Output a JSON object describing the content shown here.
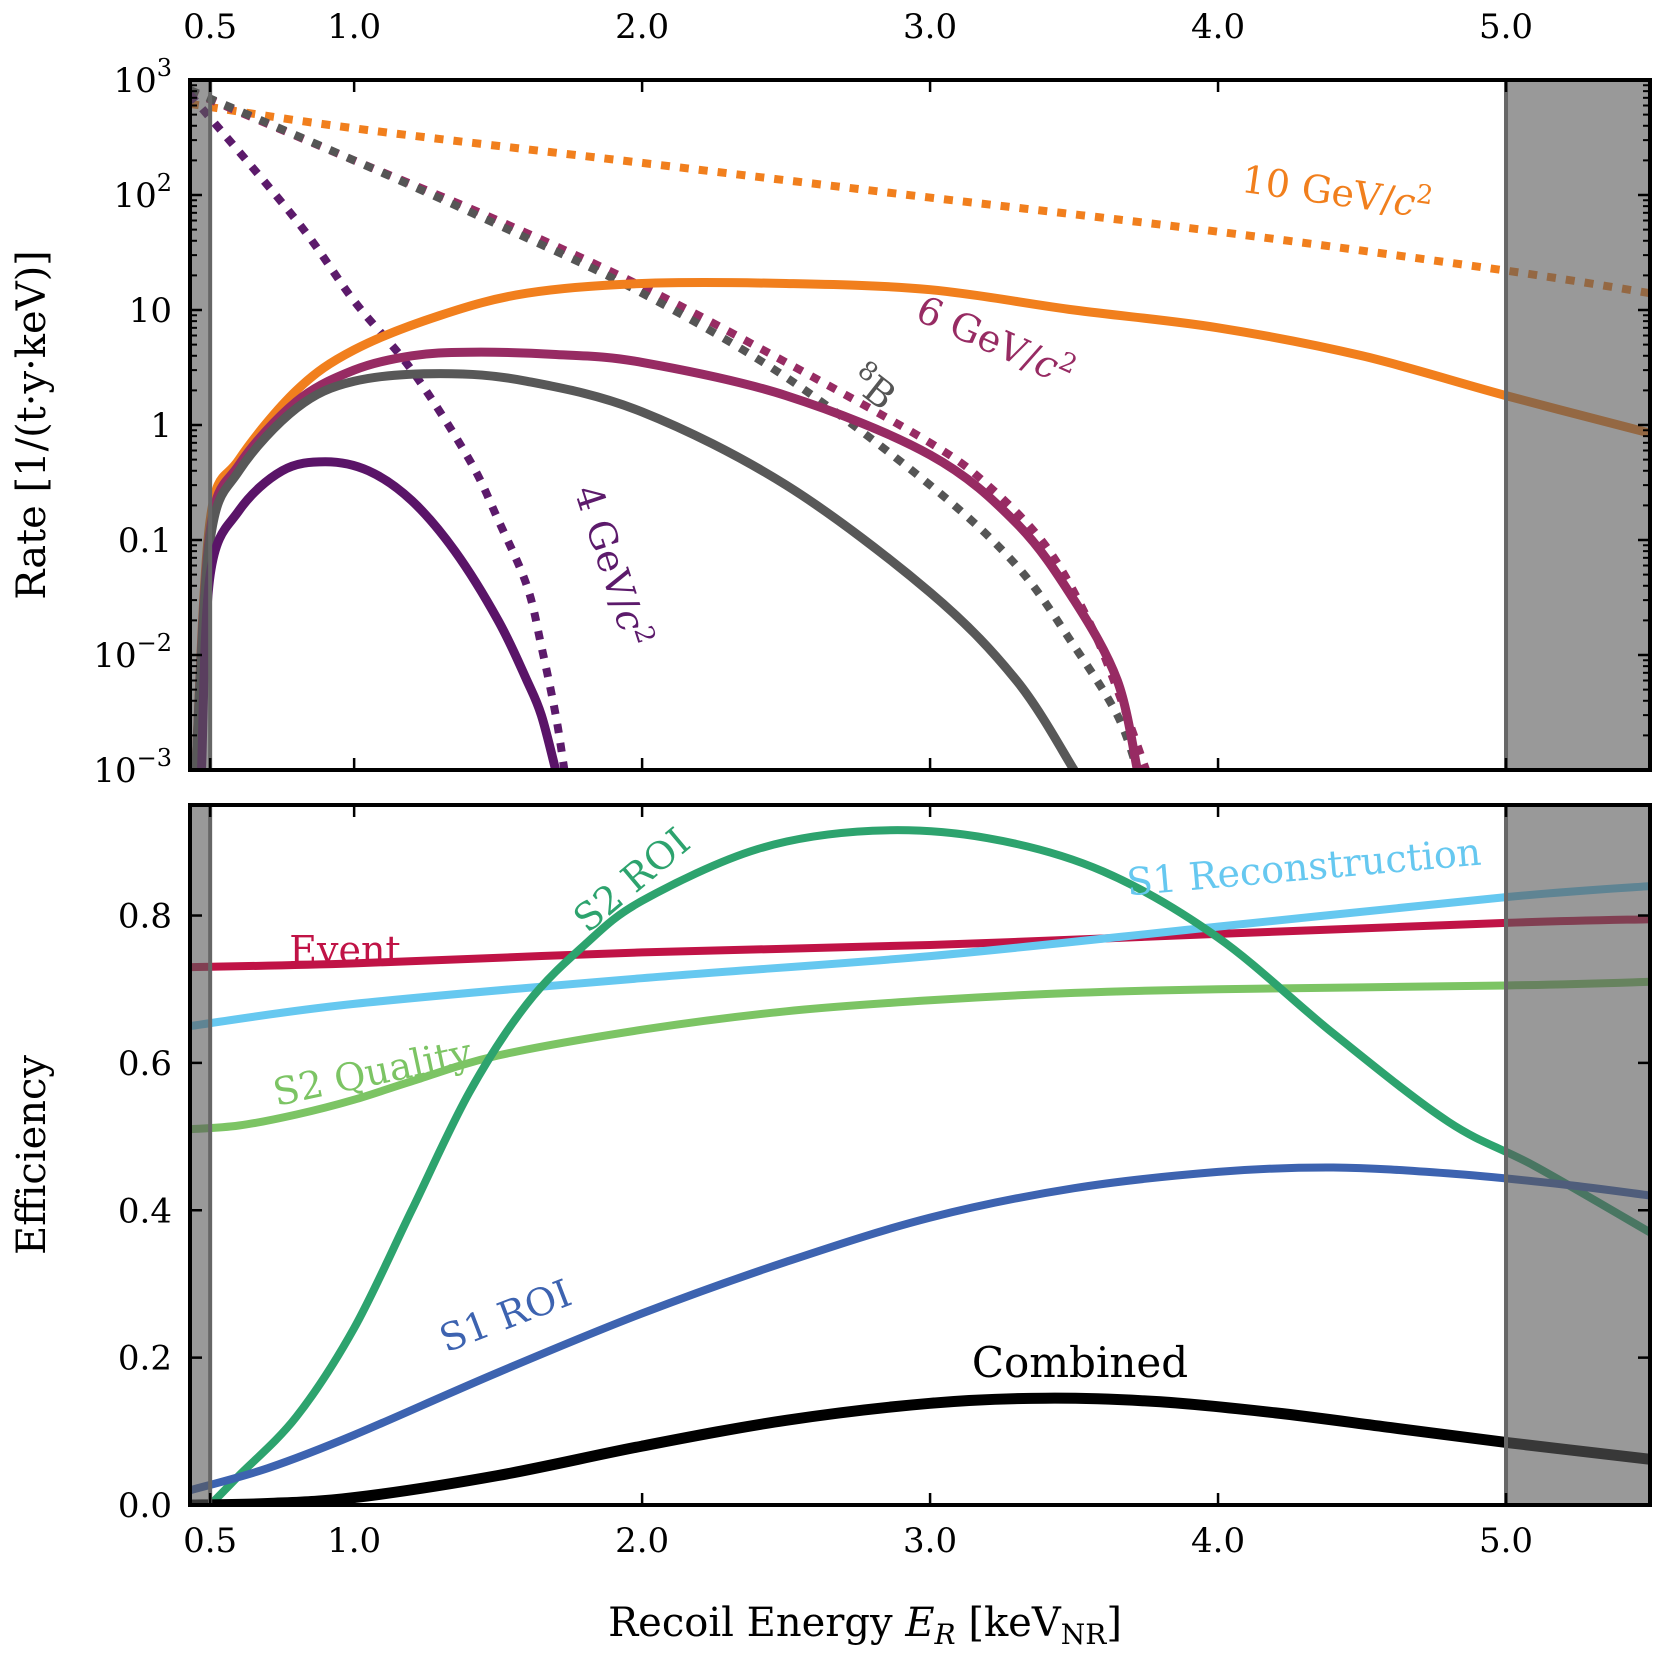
{
  "chart_data": [
    {
      "type": "line",
      "id": "rates",
      "yscale": "log",
      "xlim": [
        0.43,
        5.5
      ],
      "ylim": [
        0.001,
        1000
      ],
      "ylabel": "Rate [1/(t·y·keV)]",
      "x_top_ticks": [
        {
          "value": 0.5,
          "label": "0.5"
        },
        {
          "value": 1.0,
          "label": "1.0"
        },
        {
          "value": 2.0,
          "label": "2.0"
        },
        {
          "value": 3.0,
          "label": "3.0"
        },
        {
          "value": 4.0,
          "label": "4.0"
        },
        {
          "value": 5.0,
          "label": "5.0"
        }
      ],
      "y_ticks": [
        {
          "value": 1000,
          "base": "10",
          "exp": "3"
        },
        {
          "value": 100,
          "base": "10",
          "exp": "2"
        },
        {
          "value": 10,
          "base": "10",
          "exp": ""
        },
        {
          "value": 1,
          "base": "1",
          "exp": ""
        },
        {
          "value": 0.1,
          "base": "0.1",
          "exp": ""
        },
        {
          "value": 0.01,
          "base": "10",
          "exp": "−2"
        },
        {
          "value": 0.001,
          "base": "10",
          "exp": "−3"
        }
      ],
      "shaded_regions": [
        [
          0.43,
          0.5
        ],
        [
          5.0,
          5.5
        ]
      ],
      "series": [
        {
          "name": "10 GeV/c² (dotted)",
          "style": "dotted",
          "color": "#f17f1d",
          "x": [
            0.43,
            1.0,
            2.0,
            3.0,
            4.0,
            5.0,
            5.5
          ],
          "y": [
            620,
            380,
            190,
            95,
            48,
            22,
            14
          ]
        },
        {
          "name": "6 GeV/c² (dotted)",
          "style": "dotted",
          "color": "#972b63",
          "x": [
            0.43,
            1.0,
            1.5,
            2.0,
            2.5,
            3.0,
            3.2,
            3.4,
            3.55,
            3.65,
            3.75
          ],
          "y": [
            800,
            200,
            60,
            16,
            3.5,
            0.7,
            0.3,
            0.09,
            0.02,
            0.005,
            0.001
          ]
        },
        {
          "name": "8B (dotted)",
          "style": "dotted",
          "color": "#555555",
          "x": [
            0.43,
            1.0,
            1.5,
            2.0,
            2.5,
            3.0,
            3.3,
            3.5,
            3.65,
            3.72
          ],
          "y": [
            820,
            200,
            55,
            14,
            2.6,
            0.3,
            0.06,
            0.012,
            0.003,
            0.001
          ]
        },
        {
          "name": "4 GeV/c² (dotted)",
          "style": "dotted",
          "color": "#5c1a6b",
          "x": [
            0.43,
            0.8,
            1.0,
            1.2,
            1.4,
            1.5,
            1.6,
            1.65,
            1.7,
            1.73
          ],
          "y": [
            750,
            60,
            12,
            3,
            0.5,
            0.15,
            0.04,
            0.012,
            0.003,
            0.001
          ]
        },
        {
          "name": "10 GeV/c²",
          "style": "solid",
          "color": "#f17f1d",
          "x": [
            0.45,
            0.5,
            0.6,
            0.8,
            1.0,
            1.3,
            1.6,
            2.0,
            2.5,
            3.0,
            3.5,
            4.0,
            4.5,
            5.0,
            5.5
          ],
          "y": [
            0.001,
            0.15,
            0.5,
            2.0,
            4.5,
            9,
            14,
            17,
            17,
            15,
            10,
            7,
            4,
            1.8,
            0.85
          ]
        },
        {
          "name": "6 GeV/c²",
          "style": "solid",
          "color": "#972b63",
          "x": [
            0.45,
            0.5,
            0.6,
            0.8,
            1.0,
            1.2,
            1.4,
            1.7,
            2.0,
            2.5,
            3.0,
            3.3,
            3.5,
            3.65,
            3.72
          ],
          "y": [
            0.001,
            0.12,
            0.45,
            1.6,
            3.0,
            4.0,
            4.3,
            4.1,
            3.5,
            1.8,
            0.55,
            0.14,
            0.03,
            0.006,
            0.001
          ]
        },
        {
          "name": "8B",
          "style": "solid",
          "color": "#585858",
          "x": [
            0.45,
            0.5,
            0.6,
            0.8,
            1.0,
            1.3,
            1.6,
            2.0,
            2.5,
            3.0,
            3.3,
            3.5
          ],
          "y": [
            0.001,
            0.1,
            0.4,
            1.4,
            2.4,
            2.8,
            2.4,
            1.3,
            0.3,
            0.035,
            0.006,
            0.001
          ]
        },
        {
          "name": "4 GeV/c²",
          "style": "solid",
          "color": "#5a1468",
          "x": [
            0.47,
            0.5,
            0.6,
            0.75,
            0.9,
            1.05,
            1.2,
            1.35,
            1.5,
            1.6,
            1.65,
            1.7
          ],
          "y": [
            0.001,
            0.05,
            0.18,
            0.4,
            0.48,
            0.4,
            0.22,
            0.08,
            0.02,
            0.006,
            0.003,
            0.001
          ]
        }
      ],
      "annotations": [
        {
          "id": "label_10gev",
          "text": "10 GeV/c²",
          "color": "#f17f1d"
        },
        {
          "id": "label_6gev",
          "text": "6 GeV/c²",
          "color": "#972b63"
        },
        {
          "id": "label_8b",
          "text": "⁸B",
          "color": "#555555"
        },
        {
          "id": "label_4gev",
          "text": "4 GeV/c²",
          "color": "#5c1a6b"
        }
      ]
    },
    {
      "type": "line",
      "id": "efficiency",
      "xlim": [
        0.43,
        5.5
      ],
      "ylim": [
        0.0,
        0.95
      ],
      "xlabel": "Recoil Energy",
      "xlabel_symbol": "E",
      "xlabel_subscript": "R",
      "xlabel_unit": "keV",
      "xlabel_unit_subscript": "NR",
      "ylabel": "Efficiency",
      "x_ticks": [
        {
          "value": 0.5,
          "label": "0.5"
        },
        {
          "value": 1.0,
          "label": "1.0"
        },
        {
          "value": 2.0,
          "label": "2.0"
        },
        {
          "value": 3.0,
          "label": "3.0"
        },
        {
          "value": 4.0,
          "label": "4.0"
        },
        {
          "value": 5.0,
          "label": "5.0"
        }
      ],
      "y_ticks": [
        {
          "value": 0.0,
          "label": "0.0"
        },
        {
          "value": 0.2,
          "label": "0.2"
        },
        {
          "value": 0.4,
          "label": "0.4"
        },
        {
          "value": 0.6,
          "label": "0.6"
        },
        {
          "value": 0.8,
          "label": "0.8"
        }
      ],
      "shaded_regions": [
        [
          0.43,
          0.5
        ],
        [
          5.0,
          5.5
        ]
      ],
      "series": [
        {
          "name": "Event",
          "color": "#c01346",
          "x": [
            0.43,
            1.0,
            2.0,
            3.0,
            4.0,
            5.0,
            5.5
          ],
          "y": [
            0.73,
            0.735,
            0.75,
            0.76,
            0.775,
            0.79,
            0.795
          ]
        },
        {
          "name": "S1 Reconstruction",
          "color": "#66c8f0",
          "x": [
            0.43,
            1.0,
            2.0,
            3.0,
            4.0,
            5.0,
            5.5
          ],
          "y": [
            0.65,
            0.68,
            0.715,
            0.745,
            0.785,
            0.825,
            0.84
          ]
        },
        {
          "name": "S2 Quality",
          "color": "#7cc464",
          "x": [
            0.43,
            0.6,
            0.8,
            1.0,
            1.2,
            1.5,
            2.0,
            2.5,
            3.0,
            3.5,
            4.0,
            5.0,
            5.5
          ],
          "y": [
            0.51,
            0.515,
            0.53,
            0.55,
            0.575,
            0.61,
            0.645,
            0.67,
            0.685,
            0.695,
            0.7,
            0.705,
            0.71
          ]
        },
        {
          "name": "S2 ROI",
          "color": "#2da36e",
          "x": [
            0.5,
            0.6,
            0.8,
            1.0,
            1.2,
            1.4,
            1.6,
            1.8,
            2.0,
            2.4,
            2.8,
            3.2,
            3.6,
            4.0,
            4.4,
            4.8,
            5.1,
            5.5
          ],
          "y": [
            0.0,
            0.04,
            0.12,
            0.24,
            0.4,
            0.56,
            0.68,
            0.76,
            0.82,
            0.89,
            0.915,
            0.905,
            0.86,
            0.77,
            0.64,
            0.52,
            0.46,
            0.37
          ]
        },
        {
          "name": "S1 ROI",
          "color": "#3d63b0",
          "x": [
            0.43,
            0.7,
            1.0,
            1.5,
            2.0,
            2.5,
            3.0,
            3.5,
            4.0,
            4.4,
            4.8,
            5.2,
            5.5
          ],
          "y": [
            0.02,
            0.05,
            0.095,
            0.18,
            0.26,
            0.33,
            0.39,
            0.43,
            0.452,
            0.458,
            0.45,
            0.435,
            0.42
          ]
        },
        {
          "name": "Combined",
          "color": "#000000",
          "x": [
            0.43,
            0.7,
            1.0,
            1.5,
            2.0,
            2.5,
            3.0,
            3.4,
            3.8,
            4.2,
            4.6,
            5.0,
            5.5
          ],
          "y": [
            0.0,
            0.002,
            0.01,
            0.04,
            0.08,
            0.115,
            0.138,
            0.145,
            0.14,
            0.125,
            0.105,
            0.085,
            0.062
          ]
        }
      ],
      "annotations": [
        {
          "id": "label_event",
          "text": "Event",
          "color": "#c01346"
        },
        {
          "id": "label_s1rec",
          "text": "S1 Reconstruction",
          "color": "#66c8f0"
        },
        {
          "id": "label_s2q",
          "text": "S2 Quality",
          "color": "#7cc464"
        },
        {
          "id": "label_s2roi",
          "text": "S2 ROI",
          "color": "#2da36e"
        },
        {
          "id": "label_s1roi",
          "text": "S1 ROI",
          "color": "#3d63b0"
        },
        {
          "id": "label_combined",
          "text": "Combined",
          "color": "#000000"
        }
      ]
    }
  ]
}
